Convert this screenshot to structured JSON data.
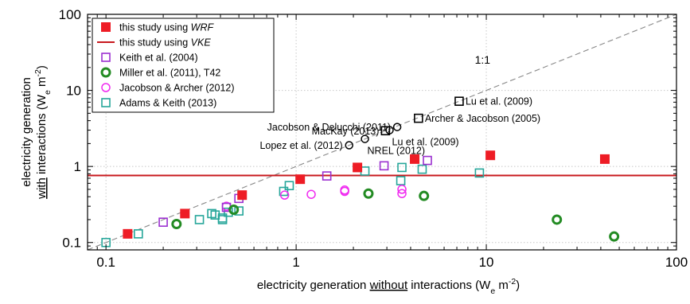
{
  "chart_data": {
    "type": "scatter",
    "xscale": "log",
    "yscale": "log",
    "xlim": [
      0.08,
      100
    ],
    "ylim": [
      0.08,
      100
    ],
    "grid": true,
    "legend_position": "top-left",
    "xlabel_parts": [
      "electricity generation ",
      "without",
      " interactions (W",
      "e",
      " m",
      "-2",
      ")"
    ],
    "ylabel_line1_parts": [
      "electricity generation"
    ],
    "ylabel_line2_parts": [
      "with",
      " interactions (W",
      "e",
      " m",
      "-2",
      ")"
    ],
    "x_ticks": [
      {
        "value": 0.1,
        "label": "0.1"
      },
      {
        "value": 1,
        "label": "1"
      },
      {
        "value": 10,
        "label": "10"
      },
      {
        "value": 100,
        "label": "100"
      }
    ],
    "y_ticks": [
      {
        "value": 0.1,
        "label": "0.1"
      },
      {
        "value": 1,
        "label": "1"
      },
      {
        "value": 10,
        "label": "10"
      },
      {
        "value": 100,
        "label": "100"
      }
    ],
    "one_to_one_label": "1:1",
    "vke_value": 0.76,
    "colors": {
      "wrf": "#ee1c25",
      "vke": "#c8191e",
      "keith": "#9b30d0",
      "miller": "#238b23",
      "jacobson_archer": "#f02af0",
      "adams": "#26a69a",
      "literature": "#000000",
      "oneline": "#888888"
    },
    "legend": [
      {
        "key": "wrf",
        "marker": "square-filled",
        "parts": [
          "this study using ",
          "WRF"
        ]
      },
      {
        "key": "vke",
        "marker": "line",
        "parts": [
          "this study using ",
          "VKE"
        ]
      },
      {
        "key": "keith",
        "marker": "square-open",
        "parts": [
          "Keith et al. (2004)"
        ]
      },
      {
        "key": "miller",
        "marker": "circle-open-thick",
        "parts": [
          "Miller et al. (2011), T42"
        ]
      },
      {
        "key": "jacobson_archer",
        "marker": "circle-open",
        "parts": [
          "Jacobson & Archer (2012)"
        ]
      },
      {
        "key": "adams",
        "marker": "square-open",
        "parts": [
          "Adams & Keith (2013)"
        ]
      }
    ],
    "series": [
      {
        "key": "wrf",
        "name": "this study using WRF",
        "points": [
          [
            0.13,
            0.13
          ],
          [
            0.26,
            0.24
          ],
          [
            0.52,
            0.42
          ],
          [
            1.05,
            0.68
          ],
          [
            2.1,
            0.97
          ],
          [
            4.2,
            1.25
          ],
          [
            10.5,
            1.4
          ],
          [
            42,
            1.25
          ]
        ]
      },
      {
        "key": "keith",
        "name": "Keith et al. (2004)",
        "points": [
          [
            0.2,
            0.185
          ],
          [
            0.43,
            0.29
          ],
          [
            0.5,
            0.38
          ],
          [
            1.45,
            0.75
          ],
          [
            2.9,
            1.02
          ],
          [
            4.9,
            1.2
          ]
        ]
      },
      {
        "key": "miller",
        "name": "Miller et al. (2011), T42",
        "points": [
          [
            0.235,
            0.175
          ],
          [
            0.47,
            0.27
          ],
          [
            2.4,
            0.44
          ],
          [
            4.7,
            0.41
          ],
          [
            23.5,
            0.2
          ],
          [
            47,
            0.12
          ]
        ]
      },
      {
        "key": "jacobson_archer",
        "name": "Jacobson & Archer (2012)",
        "points": [
          [
            0.43,
            0.3
          ],
          [
            0.87,
            0.42
          ],
          [
            1.2,
            0.43
          ],
          [
            1.8,
            0.47
          ],
          [
            1.8,
            0.49
          ],
          [
            3.6,
            0.44
          ],
          [
            3.6,
            0.5
          ]
        ]
      },
      {
        "key": "adams",
        "name": "Adams & Keith (2013)",
        "points": [
          [
            0.1,
            0.1
          ],
          [
            0.148,
            0.13
          ],
          [
            0.31,
            0.2
          ],
          [
            0.36,
            0.24
          ],
          [
            0.375,
            0.23
          ],
          [
            0.41,
            0.2
          ],
          [
            0.41,
            0.21
          ],
          [
            0.44,
            0.25
          ],
          [
            0.5,
            0.26
          ],
          [
            0.86,
            0.47
          ],
          [
            0.92,
            0.56
          ],
          [
            2.3,
            0.87
          ],
          [
            3.55,
            0.65
          ],
          [
            3.6,
            0.97
          ],
          [
            4.6,
            0.92
          ],
          [
            9.2,
            0.82
          ]
        ]
      }
    ],
    "annotations": [
      {
        "label": "Lu et al. (2009)",
        "x": 7.2,
        "y": 7.2,
        "marker": "square",
        "anchor": "right"
      },
      {
        "label": "Archer & Jacobson (2005)",
        "x": 4.4,
        "y": 4.3,
        "marker": "square",
        "anchor": "right"
      },
      {
        "label": "Jacobson & Delucchi (2011)",
        "x": 3.4,
        "y": 3.3,
        "marker": "circle",
        "anchor": "left"
      },
      {
        "label": "MacKay (2013)",
        "x": 2.95,
        "y": 2.95,
        "marker": "square",
        "anchor": "left"
      },
      {
        "label": "Lu et al. (2009)",
        "x": 3.1,
        "y": 3.0,
        "marker": "circle",
        "anchor": "below-right"
      },
      {
        "label": "",
        "x": 2.3,
        "y": 2.3,
        "marker": "circle",
        "anchor": "none"
      },
      {
        "label": "Lopez et al. (2012)",
        "x": 1.9,
        "y": 1.9,
        "marker": "circle",
        "anchor": "left"
      },
      {
        "label": "NREL (2012)",
        "x": 2.3,
        "y": 2.3,
        "marker": "none",
        "anchor": "below-right"
      }
    ]
  }
}
